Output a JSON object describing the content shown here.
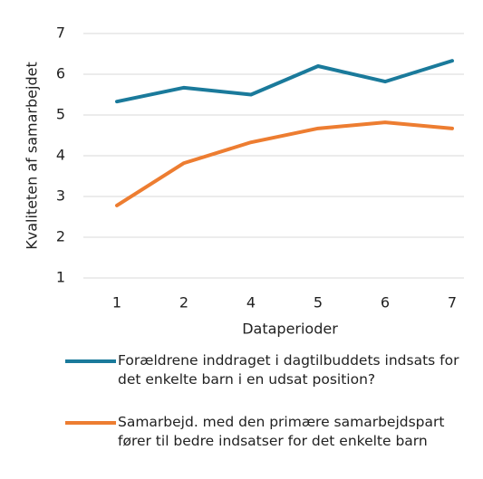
{
  "chart_data": {
    "type": "line",
    "xlabel": "Dataperioder",
    "ylabel": "Kvaliteten af samarbejdet",
    "categories": [
      "1",
      "2",
      "4",
      "5",
      "6",
      "7"
    ],
    "series": [
      {
        "name": "Forældrene inddraget i dagtilbuddets indsats for det enkelte barn i en udsat position?",
        "color": "#1a7a9b",
        "values": [
          5.33,
          5.67,
          5.5,
          6.2,
          5.82,
          6.33
        ]
      },
      {
        "name": "Samarbejd. med den primære samarbejdspart fører til bedre indsatser for det enkelte barn",
        "color": "#ed7d31",
        "values": [
          2.78,
          3.82,
          4.33,
          4.67,
          4.82,
          4.67
        ]
      }
    ],
    "ylim": [
      1,
      7
    ],
    "yticks": [
      1,
      2,
      3,
      4,
      5,
      6,
      7
    ],
    "grid": true,
    "legend": "bottom"
  }
}
